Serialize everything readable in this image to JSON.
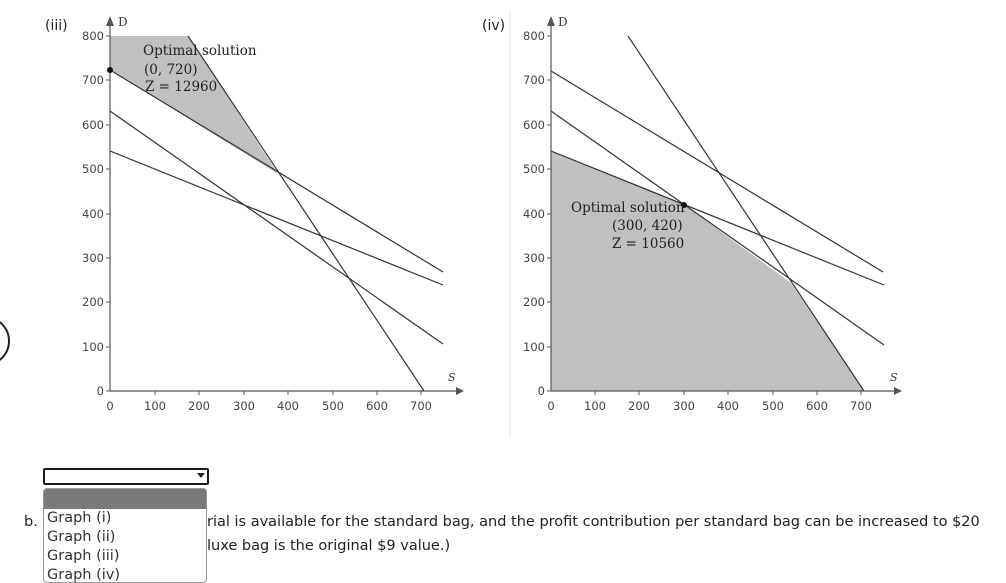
{
  "graph3": {
    "label": "(iii)",
    "y_axis_name": "D",
    "x_axis_name": "S",
    "y_ticks": [
      "800",
      "700",
      "600",
      "500",
      "400",
      "300",
      "200",
      "100",
      "0"
    ],
    "x_ticks": [
      "0",
      "100",
      "200",
      "300",
      "400",
      "500",
      "600",
      "700"
    ],
    "annotation": [
      "Optimal solution",
      "(0, 720)",
      "Z = 12960"
    ]
  },
  "graph4": {
    "label": "(iv)",
    "y_axis_name": "D",
    "x_axis_name": "S",
    "y_ticks": [
      "800",
      "700",
      "600",
      "500",
      "400",
      "300",
      "200",
      "100",
      "0"
    ],
    "x_ticks": [
      "0",
      "100",
      "200",
      "300",
      "400",
      "500",
      "600",
      "700"
    ],
    "annotation": [
      "Optimal solution",
      "(300, 420)",
      "Z = 10560"
    ]
  },
  "select": {
    "value": ""
  },
  "dropdown": {
    "options": [
      "Graph (i)",
      "Graph (ii)",
      "Graph (iii)",
      "Graph (iv)"
    ]
  },
  "question": {
    "label": "b.",
    "line1": "rial is available for the standard bag, and the profit contribution per standard bag can be increased to $20",
    "line2": "luxe bag is the original $9 value.)"
  },
  "colors": {
    "feasible": "#c0c0c0",
    "line": "#333333"
  }
}
